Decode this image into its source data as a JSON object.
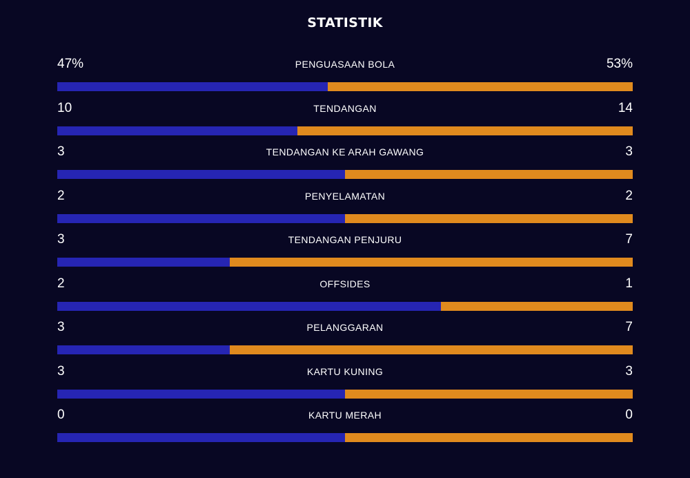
{
  "title": "STATISTIK",
  "colors": {
    "background": "#080723",
    "home": "#2625b3",
    "away": "#e08a1e"
  },
  "stats": [
    {
      "label": "PENGUASAAN BOLA",
      "home": "47%",
      "away": "53%",
      "home_value": 47,
      "away_value": 53
    },
    {
      "label": "TENDANGAN",
      "home": "10",
      "away": "14",
      "home_value": 10,
      "away_value": 14
    },
    {
      "label": "TENDANGAN KE ARAH GAWANG",
      "home": "3",
      "away": "3",
      "home_value": 3,
      "away_value": 3
    },
    {
      "label": "PENYELAMATAN",
      "home": "2",
      "away": "2",
      "home_value": 2,
      "away_value": 2
    },
    {
      "label": "TENDANGAN PENJURU",
      "home": "3",
      "away": "7",
      "home_value": 3,
      "away_value": 7
    },
    {
      "label": "OFFSIDES",
      "home": "2",
      "away": "1",
      "home_value": 2,
      "away_value": 1
    },
    {
      "label": "PELANGGARAN",
      "home": "3",
      "away": "7",
      "home_value": 3,
      "away_value": 7
    },
    {
      "label": "KARTU KUNING",
      "home": "3",
      "away": "3",
      "home_value": 3,
      "away_value": 3
    },
    {
      "label": "KARTU MERAH",
      "home": "0",
      "away": "0",
      "home_value": 0,
      "away_value": 0
    }
  ]
}
